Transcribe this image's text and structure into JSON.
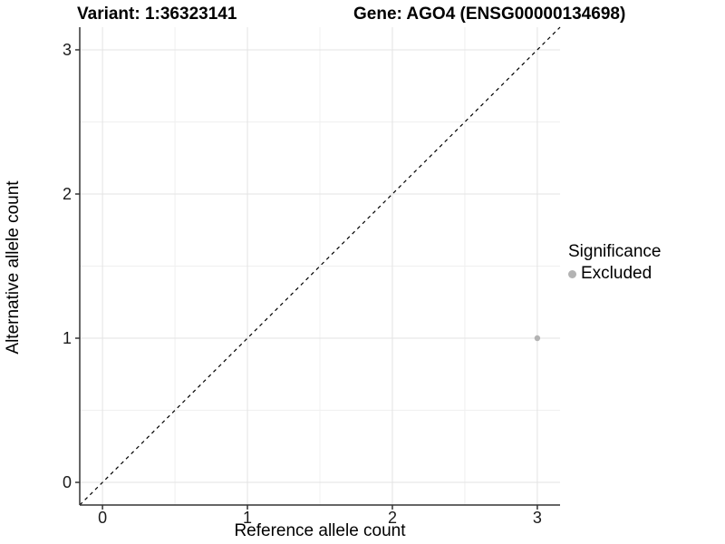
{
  "title": {
    "variant": "Variant: 1:36323141",
    "gene": "Gene: AGO4 (ENSG00000134698)"
  },
  "legend": {
    "title": "Significance",
    "items": [
      {
        "label": "Excluded",
        "color": "#b3b3b3"
      }
    ]
  },
  "colors": {
    "grid_major": "#e3e3e3",
    "grid_minor": "#f0f0f0",
    "axis_line": "#333333",
    "tick_mark": "#333333",
    "tick_label": "#1a1a1a",
    "reference_line": "#000000",
    "point_excluded": "#b3b3b3"
  },
  "chart_data": {
    "type": "scatter",
    "title": "Variant: 1:36323141    Gene: AGO4 (ENSG00000134698)",
    "xlabel": "Reference allele count",
    "ylabel": "Alternative allele count",
    "xlim": [
      -0.157,
      3.157
    ],
    "ylim": [
      -0.157,
      3.157
    ],
    "x_ticks": [
      0,
      1,
      2,
      3
    ],
    "y_ticks": [
      0,
      1,
      2,
      3
    ],
    "minor_ticks": [
      0.5,
      1.5,
      2.5
    ],
    "grid": true,
    "legend_position": "right",
    "legend_title": "Significance",
    "series": [
      {
        "name": "Excluded",
        "color": "#b3b3b3",
        "points": [
          {
            "x": 3,
            "y": 1
          }
        ]
      }
    ],
    "reference_line": {
      "kind": "identity",
      "slope": 1,
      "intercept": 0,
      "style": "dashed",
      "color": "#000000"
    }
  }
}
